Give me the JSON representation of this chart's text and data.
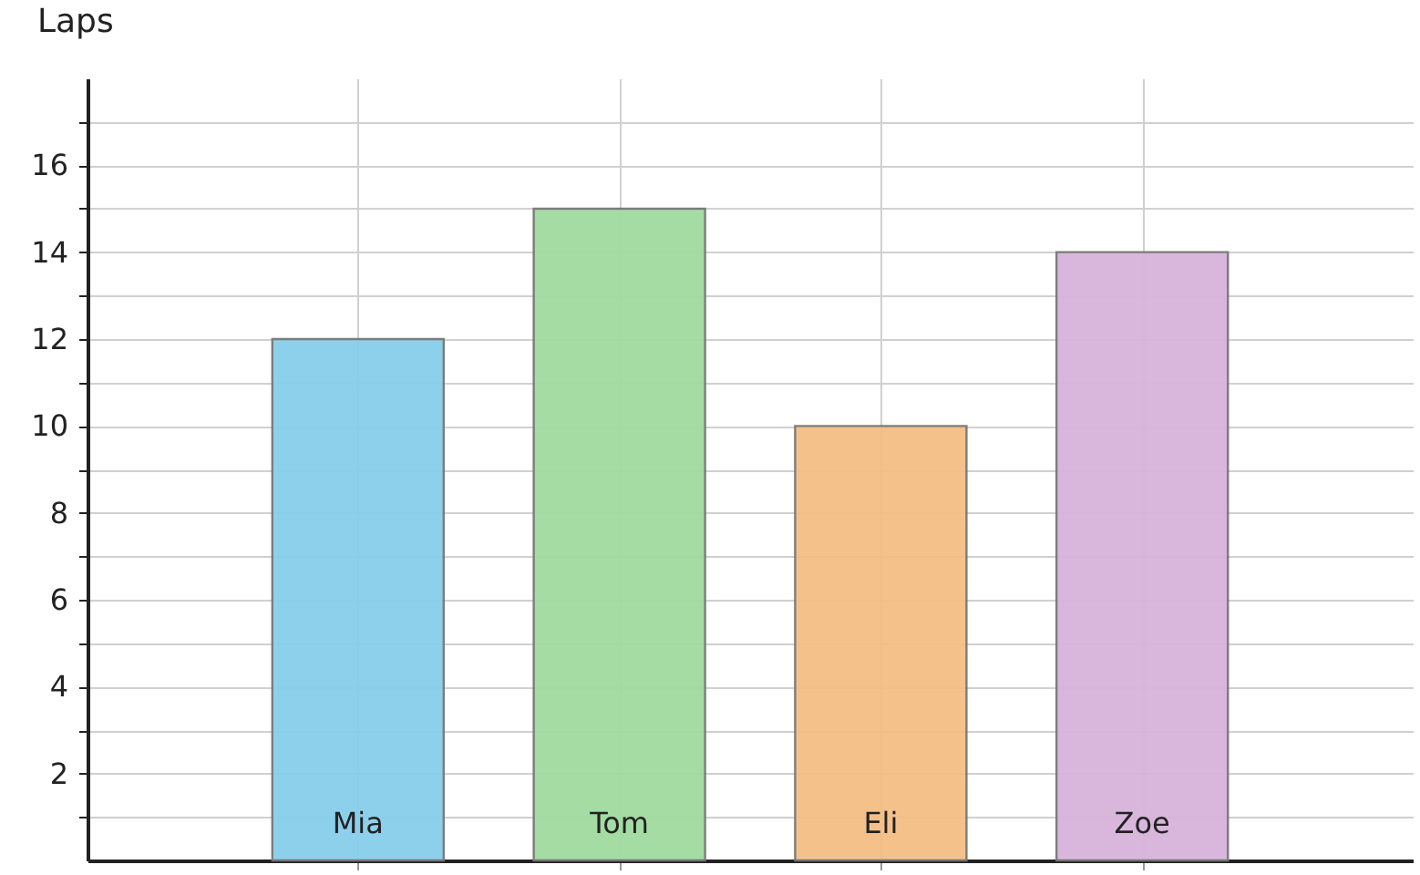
{
  "chart_data": {
    "type": "bar",
    "ylabel": "Laps",
    "categories": [
      "Mia",
      "Tom",
      "Eli",
      "Zoe"
    ],
    "values": [
      12,
      15,
      10,
      14
    ],
    "colors": [
      "#87ceeb",
      "#a0dba0",
      "#f4be85",
      "#d8b4dc"
    ],
    "ylim": [
      0,
      18
    ],
    "yticks": [
      {
        "value": 1,
        "label": null
      },
      2,
      {
        "value": 3,
        "label": null
      },
      4,
      {
        "value": 5,
        "label": null
      },
      6,
      {
        "value": 7,
        "label": null
      },
      8,
      {
        "value": 9,
        "label": null
      },
      10,
      {
        "value": 11,
        "label": null
      },
      12,
      {
        "value": 13,
        "label": null
      },
      14,
      {
        "value": 15,
        "label": null
      },
      16,
      {
        "value": 17,
        "label": null
      }
    ],
    "grid": true
  }
}
